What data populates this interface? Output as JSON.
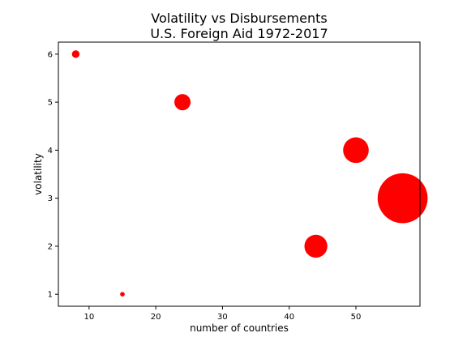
{
  "chart_data": {
    "type": "scatter",
    "title_line1": "Volatility vs Disbursements",
    "title_line2": "U.S. Foreign Aid 1972-2017",
    "xlabel": "number of countries",
    "ylabel": "volatility",
    "xlim": [
      5.4,
      59.6
    ],
    "ylim": [
      0.75,
      6.25
    ],
    "xticks": [
      10,
      20,
      30,
      40,
      50
    ],
    "yticks": [
      1,
      2,
      3,
      4,
      5,
      6
    ],
    "marker_color": "#ff0000",
    "points": [
      {
        "x": 8,
        "y": 6,
        "size": 22
      },
      {
        "x": 24,
        "y": 5,
        "size": 100
      },
      {
        "x": 50,
        "y": 4,
        "size": 250
      },
      {
        "x": 57,
        "y": 3,
        "size": 950
      },
      {
        "x": 44,
        "y": 2,
        "size": 200
      },
      {
        "x": 15,
        "y": 1,
        "size": 8
      }
    ]
  }
}
